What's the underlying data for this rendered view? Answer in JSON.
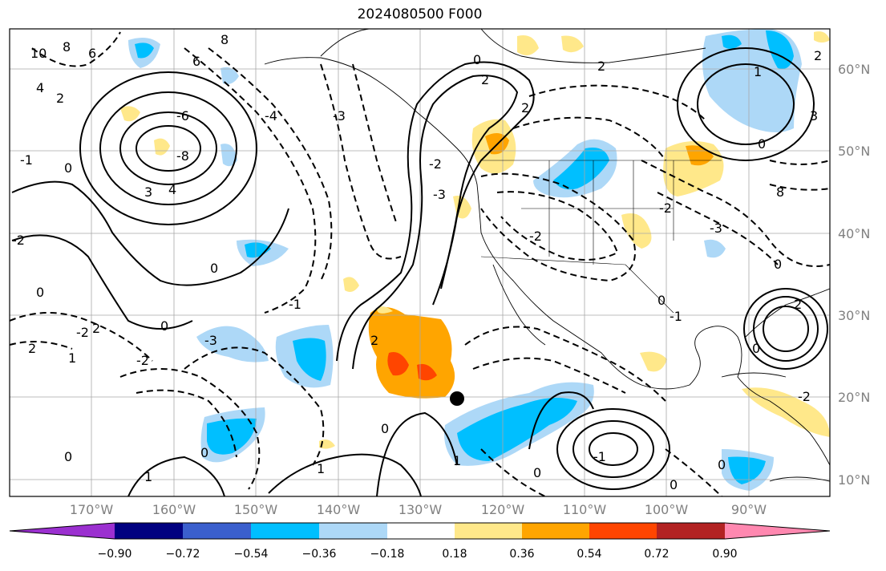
{
  "title": "2024080500 F000",
  "map": {
    "lat_labels": [
      "60°N",
      "50°N",
      "40°N",
      "30°N",
      "20°N",
      "10°N"
    ],
    "lon_labels": [
      "170°W",
      "160°W",
      "150°W",
      "140°W",
      "130°W",
      "120°W",
      "110°W",
      "100°W",
      "90°W"
    ],
    "contour_labels": [
      "10",
      "8",
      "6",
      "4",
      "2",
      "1",
      "0",
      "-1",
      "-2",
      "-3",
      "-4",
      "-6",
      "-8",
      "3",
      "1",
      "2",
      "0",
      "8",
      "6",
      "4",
      "3",
      "2",
      "1"
    ],
    "marker": "storm-position"
  },
  "colorbar": {
    "ticks": [
      "−0.90",
      "−0.72",
      "−0.54",
      "−0.36",
      "−0.18",
      "0.18",
      "0.36",
      "0.54",
      "0.72",
      "0.90"
    ],
    "colors": [
      "#9b30d0",
      "#000080",
      "#3a5fcd",
      "#00bfff",
      "#add8f7",
      "#ffffff",
      "#ffe88a",
      "#ffa500",
      "#ff4500",
      "#b22222",
      "#ff88b0"
    ]
  }
}
